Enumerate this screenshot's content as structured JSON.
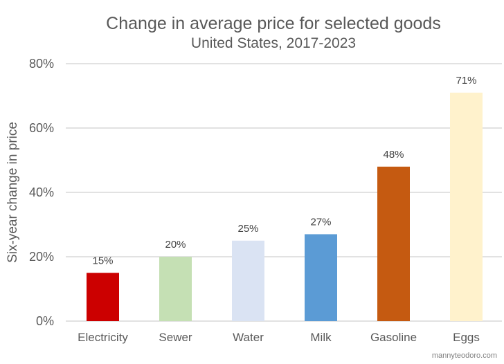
{
  "chart_data": {
    "type": "bar",
    "title": "Change in average price for selected goods",
    "subtitle": "United States, 2017-2023",
    "xlabel": "",
    "ylabel": "Six-year change in price",
    "categories": [
      "Electricity",
      "Sewer",
      "Water",
      "Milk",
      "Gasoline",
      "Eggs"
    ],
    "values": [
      15,
      20,
      25,
      27,
      48,
      71
    ],
    "data_labels": [
      "15%",
      "20%",
      "25%",
      "27%",
      "48%",
      "71%"
    ],
    "colors": [
      "#CC0000",
      "#C5E0B4",
      "#DAE3F3",
      "#5B9BD5",
      "#C55A11",
      "#FFF2CC"
    ],
    "ylim": [
      0,
      80
    ],
    "yticks": [
      0,
      20,
      40,
      60,
      80
    ],
    "ytick_labels": [
      "0%",
      "20%",
      "40%",
      "60%",
      "80%"
    ],
    "grid": true,
    "legend": "none"
  },
  "credit": "mannyteodoro.com"
}
